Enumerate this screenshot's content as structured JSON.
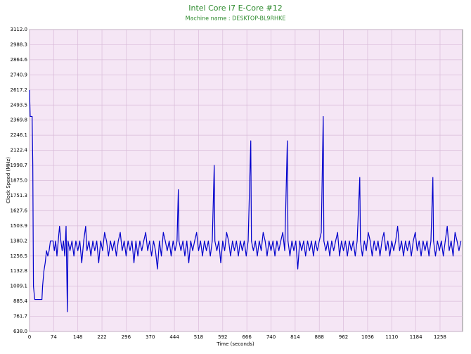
{
  "chart_data": {
    "type": "line",
    "title": "Intel Core i7 E-Core #12",
    "subtitle": "Machine name : DESKTOP-BL9RHKE",
    "x_label": "Time (seconds)",
    "y_label": "Clock Speed (MHz)",
    "xlim": [
      0,
      1327
    ],
    "ylim": [
      638,
      3112
    ],
    "xticks": [
      0,
      74,
      148,
      222,
      296,
      370,
      444,
      518,
      592,
      666,
      740,
      814,
      888,
      962,
      1036,
      1110,
      1184,
      1258
    ],
    "yticks": [
      {
        "value": 638,
        "label": "638.0"
      },
      761.7,
      885.4,
      1009.1,
      1132.8,
      1256.5,
      1380.2,
      1503.9,
      1627.6,
      1751.3,
      {
        "value": 1875,
        "label": "1875.0"
      },
      1998.7,
      2122.4,
      2246.1,
      2369.8,
      2493.5,
      2617.2,
      2740.9,
      2864.6,
      2988.3,
      {
        "value": 3112,
        "label": "3112.0"
      }
    ],
    "grid": true,
    "x": [
      0,
      2,
      8,
      10,
      12,
      16,
      38,
      40,
      44,
      48,
      52,
      56,
      60,
      64,
      72,
      76,
      80,
      84,
      88,
      92,
      96,
      100,
      104,
      108,
      112,
      116,
      118,
      124,
      130,
      136,
      142,
      148,
      154,
      160,
      166,
      172,
      176,
      182,
      188,
      194,
      200,
      206,
      212,
      218,
      224,
      230,
      236,
      242,
      248,
      254,
      260,
      266,
      272,
      278,
      284,
      290,
      296,
      302,
      308,
      314,
      320,
      326,
      332,
      338,
      344,
      350,
      356,
      362,
      368,
      374,
      380,
      386,
      392,
      398,
      404,
      410,
      416,
      422,
      428,
      434,
      440,
      446,
      452,
      456,
      458,
      464,
      470,
      476,
      482,
      488,
      494,
      500,
      506,
      512,
      518,
      524,
      530,
      536,
      542,
      548,
      554,
      560,
      566,
      568,
      574,
      580,
      586,
      592,
      598,
      604,
      610,
      616,
      622,
      628,
      634,
      640,
      646,
      652,
      658,
      664,
      670,
      678,
      680,
      686,
      692,
      698,
      704,
      710,
      716,
      722,
      728,
      734,
      740,
      746,
      752,
      758,
      764,
      770,
      776,
      782,
      790,
      792,
      798,
      804,
      810,
      816,
      822,
      828,
      834,
      840,
      846,
      852,
      858,
      864,
      870,
      876,
      882,
      888,
      894,
      900,
      902,
      908,
      914,
      920,
      926,
      932,
      938,
      944,
      950,
      956,
      962,
      968,
      974,
      980,
      986,
      992,
      998,
      1004,
      1012,
      1014,
      1020,
      1026,
      1032,
      1038,
      1044,
      1050,
      1056,
      1062,
      1068,
      1074,
      1080,
      1086,
      1092,
      1098,
      1104,
      1110,
      1116,
      1122,
      1128,
      1134,
      1140,
      1146,
      1152,
      1158,
      1164,
      1170,
      1176,
      1182,
      1188,
      1194,
      1200,
      1206,
      1212,
      1218,
      1224,
      1230,
      1236,
      1238,
      1244,
      1250,
      1256,
      1262,
      1268,
      1274,
      1280,
      1286,
      1292,
      1298,
      1304,
      1310,
      1316,
      1322
    ],
    "series": [
      {
        "name": "Clock Speed",
        "color": "#0000cc",
        "values": [
          2617,
          2400,
          2400,
          2000,
          1009,
          900,
          900,
          1009,
          1132,
          1200,
          1300,
          1256,
          1300,
          1380,
          1380,
          1300,
          1380,
          1256,
          1380,
          1500,
          1380,
          1300,
          1380,
          1256,
          1500,
          800,
          1380,
          1300,
          1380,
          1256,
          1380,
          1300,
          1380,
          1200,
          1380,
          1500,
          1300,
          1380,
          1256,
          1380,
          1300,
          1380,
          1200,
          1380,
          1300,
          1450,
          1380,
          1256,
          1380,
          1300,
          1380,
          1256,
          1380,
          1450,
          1300,
          1380,
          1256,
          1380,
          1300,
          1380,
          1200,
          1380,
          1256,
          1380,
          1300,
          1380,
          1450,
          1300,
          1380,
          1256,
          1380,
          1300,
          1150,
          1380,
          1256,
          1450,
          1380,
          1300,
          1380,
          1256,
          1380,
          1300,
          1380,
          1800,
          1380,
          1300,
          1380,
          1256,
          1380,
          1200,
          1380,
          1300,
          1380,
          1450,
          1300,
          1380,
          1256,
          1380,
          1300,
          1380,
          1256,
          1380,
          2000,
          1380,
          1300,
          1380,
          1200,
          1380,
          1300,
          1450,
          1380,
          1256,
          1380,
          1300,
          1380,
          1256,
          1380,
          1300,
          1380,
          1256,
          1380,
          2200,
          1380,
          1300,
          1380,
          1256,
          1380,
          1300,
          1450,
          1380,
          1256,
          1380,
          1300,
          1380,
          1256,
          1380,
          1300,
          1380,
          1450,
          1300,
          2200,
          1380,
          1256,
          1380,
          1300,
          1380,
          1150,
          1380,
          1300,
          1380,
          1256,
          1380,
          1300,
          1380,
          1256,
          1380,
          1300,
          1380,
          1450,
          2400,
          1380,
          1300,
          1380,
          1256,
          1380,
          1300,
          1380,
          1450,
          1256,
          1380,
          1300,
          1380,
          1256,
          1380,
          1300,
          1380,
          1256,
          1380,
          1900,
          1380,
          1256,
          1380,
          1300,
          1450,
          1380,
          1256,
          1380,
          1300,
          1380,
          1256,
          1380,
          1450,
          1300,
          1380,
          1256,
          1380,
          1300,
          1380,
          1500,
          1300,
          1380,
          1256,
          1380,
          1300,
          1380,
          1256,
          1380,
          1450,
          1300,
          1380,
          1256,
          1380,
          1300,
          1380,
          1256,
          1380,
          1900,
          1380,
          1256,
          1380,
          1300,
          1380,
          1256,
          1380,
          1500,
          1300,
          1380,
          1256,
          1450,
          1380,
          1300,
          1380
        ]
      }
    ]
  }
}
